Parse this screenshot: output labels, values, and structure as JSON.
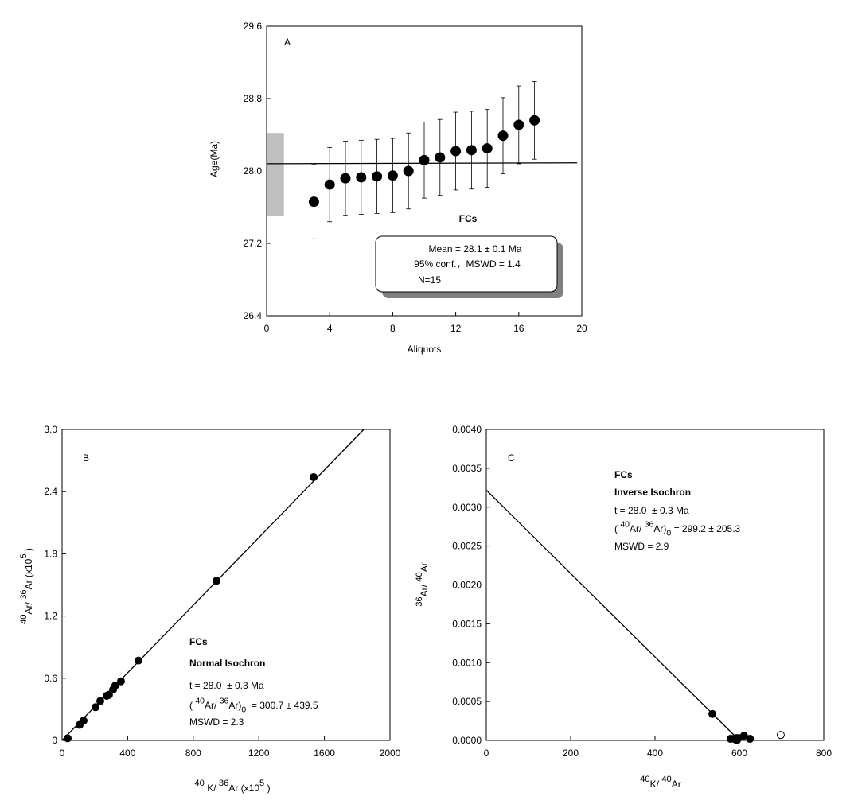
{
  "chart_data": [
    {
      "type": "scatter",
      "panel": "A",
      "xlabel": [
        {
          "t": "Aliquots"
        }
      ],
      "ylabel": [
        {
          "t": "Age(Ma)"
        }
      ],
      "x": [
        3,
        4,
        5,
        6,
        7,
        8,
        9,
        10,
        11,
        12,
        13,
        14,
        15,
        16,
        17
      ],
      "values": [
        27.66,
        27.85,
        27.92,
        27.93,
        27.94,
        27.95,
        28.0,
        28.12,
        28.15,
        28.22,
        28.23,
        28.25,
        28.39,
        28.51,
        28.56
      ],
      "errors": [
        0.41,
        0.41,
        0.41,
        0.41,
        0.41,
        0.41,
        0.42,
        0.42,
        0.42,
        0.43,
        0.43,
        0.43,
        0.42,
        0.43,
        0.43
      ],
      "color": "#000000",
      "xlim": [
        0,
        20
      ],
      "xticks": [
        0,
        4,
        8,
        12,
        16,
        20
      ],
      "ylim": [
        26.4,
        29.6
      ],
      "yticks": [
        26.4,
        27.2,
        {
          "value": 28,
          "label": "28.0"
        },
        28.8,
        29.6
      ],
      "fit_line": {
        "x": [
          0,
          19.7
        ],
        "y": [
          28.08,
          28.09
        ]
      },
      "band": {
        "x": [
          0,
          1.1
        ],
        "y": [
          27.5,
          28.42
        ],
        "color": "#bfbfbf"
      },
      "annotations": [
        [
          {
            "t": "FCs"
          }
        ],
        [
          {
            "t": "Mean = 28.1 ± 0.1 Ma"
          }
        ],
        [
          {
            "t": "95% conf.，MSWD = 1.4"
          }
        ],
        [
          {
            "t": "N=15"
          }
        ]
      ]
    },
    {
      "type": "scatter",
      "panel": "B",
      "xlabel": [
        {
          "t": "40",
          "s": "sup"
        },
        {
          "t": " K/ "
        },
        {
          "t": "36",
          "s": "sup"
        },
        {
          "t": "Ar (x10"
        },
        {
          "t": "5",
          "s": "sup"
        },
        {
          "t": " )"
        }
      ],
      "ylabel": [
        {
          "t": "40",
          "s": "sup"
        },
        {
          "t": "Ar/ "
        },
        {
          "t": "36",
          "s": "sup"
        },
        {
          "t": "Ar (x10"
        },
        {
          "t": "5",
          "s": "sup"
        },
        {
          "t": " )"
        }
      ],
      "x": [
        34,
        107,
        131,
        204,
        233,
        272,
        286,
        311,
        325,
        359,
        466,
        942,
        1534
      ],
      "values": [
        0.02,
        0.15,
        0.19,
        0.32,
        0.38,
        0.43,
        0.44,
        0.49,
        0.53,
        0.57,
        0.77,
        1.54,
        2.54
      ],
      "color": "#000000",
      "xlim": [
        0,
        2000
      ],
      "xticks": [
        0,
        400,
        800,
        1200,
        1600,
        2000
      ],
      "ylim": [
        0,
        3.0
      ],
      "yticks": [
        0,
        0.6,
        1.2,
        1.8,
        2.4,
        {
          "value": 3,
          "label": "3.0"
        }
      ],
      "fit_line": {
        "x": [
          0,
          1840
        ],
        "y": [
          0,
          3.0
        ]
      },
      "annotations": [
        [
          {
            "t": "FCs"
          }
        ],
        [
          {
            "t": "Normal Isochron"
          }
        ],
        [
          {
            "t": "t = 28.0  ± 0.3 Ma"
          }
        ],
        [
          {
            "t": "( "
          },
          {
            "t": "40",
            "s": "sup"
          },
          {
            "t": "Ar/ "
          },
          {
            "t": "36",
            "s": "sup"
          },
          {
            "t": "Ar)"
          },
          {
            "t": "0",
            "s": "sub"
          },
          {
            "t": "  = 300.7 ± 439.5"
          }
        ],
        [
          {
            "t": "MSWD = 2.3"
          }
        ]
      ]
    },
    {
      "type": "scatter",
      "panel": "C",
      "xlabel": [
        {
          "t": "40",
          "s": "sup"
        },
        {
          "t": "K/ "
        },
        {
          "t": "40",
          "s": "sup"
        },
        {
          "t": "Ar"
        }
      ],
      "ylabel": [
        {
          "t": "36",
          "s": "sup"
        },
        {
          "t": "Ar/ "
        },
        {
          "t": "40",
          "s": "sup"
        },
        {
          "t": "Ar"
        }
      ],
      "series": [
        {
          "marker": "filled",
          "color": "#000000",
          "x": [
            536,
            579,
            587,
            594,
            598,
            611,
            625,
            594
          ],
          "values": [
            0.00034,
            2e-05,
            2e-05,
            3e-05,
            3e-05,
            6e-05,
            2e-05,
            0.0
          ]
        },
        {
          "marker": "open",
          "color": "#000000",
          "x": [
            698
          ],
          "values": [
            7e-05
          ]
        }
      ],
      "xlim": [
        0,
        800
      ],
      "xticks": [
        0,
        200,
        400,
        600,
        800
      ],
      "ylim": [
        0,
        0.004
      ],
      "yticks": [
        {
          "value": 0,
          "label": "0.0000"
        },
        0.0005,
        {
          "value": 0.001,
          "label": "0.0010"
        },
        0.0015,
        {
          "value": 0.002,
          "label": "0.0020"
        },
        0.0025,
        {
          "value": 0.003,
          "label": "0.0030"
        },
        0.0035,
        {
          "value": 0.004,
          "label": "0.0040"
        }
      ],
      "fit_line": {
        "x": [
          0,
          600
        ],
        "y": [
          0.00322,
          0
        ]
      },
      "annotations": [
        [
          {
            "t": "FCs"
          }
        ],
        [
          {
            "t": "Inverse Isochron"
          }
        ],
        [
          {
            "t": "t = 28.0  ± 0.3 Ma"
          }
        ],
        [
          {
            "t": "( "
          },
          {
            "t": "40",
            "s": "sup"
          },
          {
            "t": "Ar/ "
          },
          {
            "t": "36",
            "s": "sup"
          },
          {
            "t": "Ar)"
          },
          {
            "t": "0",
            "s": "sub"
          },
          {
            "t": " = 299.2 ± 205.3"
          }
        ],
        [
          {
            "t": "MSWD = 2.9"
          }
        ]
      ]
    }
  ]
}
